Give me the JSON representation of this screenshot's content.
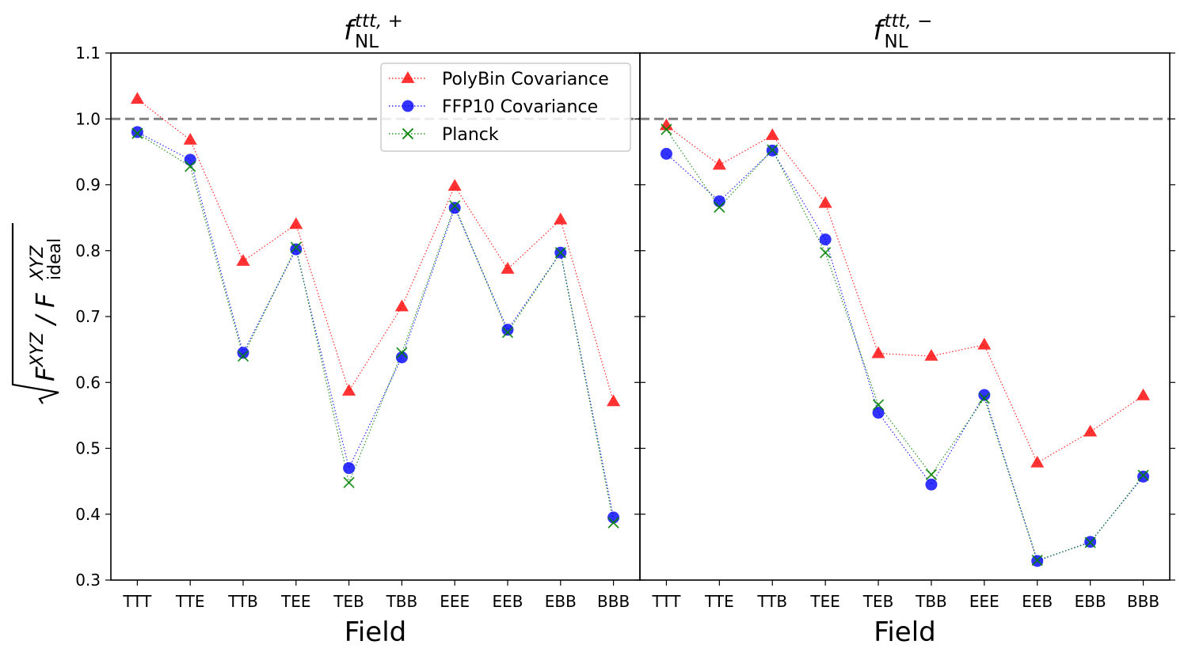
{
  "chart_data": [
    {
      "type": "line",
      "title": {
        "symbol": "f",
        "subscript": "NL",
        "superscript": "ttt, +"
      },
      "xlabel": "Field",
      "ylabel": {
        "radical": "√",
        "numerator": "F",
        "numerator_sup": "XYZ",
        "separator": " / ",
        "denominator": "F",
        "denominator_sup": "XYZ",
        "denominator_sub": "ideal"
      },
      "categories": [
        "TTT",
        "TTE",
        "TTB",
        "TEE",
        "TEB",
        "TBB",
        "EEE",
        "EEB",
        "EBB",
        "BBB"
      ],
      "ylim": [
        0.3,
        1.1
      ],
      "yticks": [
        "0.3",
        "0.4",
        "0.5",
        "0.6",
        "0.7",
        "0.8",
        "0.9",
        "1.0",
        "1.1"
      ],
      "reference_line": 1.0,
      "series": [
        {
          "name": "PolyBin Covariance",
          "color": "#ff0000",
          "marker": "triangle",
          "values": [
            1.03,
            0.968,
            0.784,
            0.84,
            0.587,
            0.715,
            0.898,
            0.772,
            0.847,
            0.571
          ]
        },
        {
          "name": "FFP10 Covariance",
          "color": "#0000ff",
          "marker": "circle",
          "values": [
            0.98,
            0.938,
            0.645,
            0.802,
            0.47,
            0.638,
            0.865,
            0.68,
            0.797,
            0.395
          ]
        },
        {
          "name": "Planck",
          "color": "#008000",
          "marker": "x",
          "values": [
            0.978,
            0.928,
            0.64,
            0.805,
            0.448,
            0.645,
            0.868,
            0.676,
            0.797,
            0.387
          ]
        }
      ]
    },
    {
      "type": "line",
      "title": {
        "symbol": "f",
        "subscript": "NL",
        "superscript": "ttt, −"
      },
      "xlabel": "Field",
      "categories": [
        "TTT",
        "TTE",
        "TTB",
        "TEE",
        "TEB",
        "TBB",
        "EEE",
        "EEB",
        "EBB",
        "BBB"
      ],
      "ylim": [
        0.3,
        1.1
      ],
      "reference_line": 1.0,
      "series": [
        {
          "name": "PolyBin Covariance",
          "color": "#ff0000",
          "marker": "triangle",
          "values": [
            0.99,
            0.93,
            0.975,
            0.872,
            0.644,
            0.64,
            0.657,
            0.478,
            0.525,
            0.58
          ]
        },
        {
          "name": "FFP10 Covariance",
          "color": "#0000ff",
          "marker": "circle",
          "values": [
            0.947,
            0.875,
            0.952,
            0.817,
            0.554,
            0.445,
            0.581,
            0.329,
            0.358,
            0.457
          ]
        },
        {
          "name": "Planck",
          "color": "#008000",
          "marker": "x",
          "values": [
            0.984,
            0.866,
            0.953,
            0.797,
            0.566,
            0.46,
            0.576,
            0.33,
            0.357,
            0.459
          ]
        }
      ]
    }
  ],
  "legend": {
    "placement": "top-center of left panel",
    "entries": [
      "PolyBin Covariance",
      "FFP10 Covariance",
      "Planck"
    ]
  }
}
